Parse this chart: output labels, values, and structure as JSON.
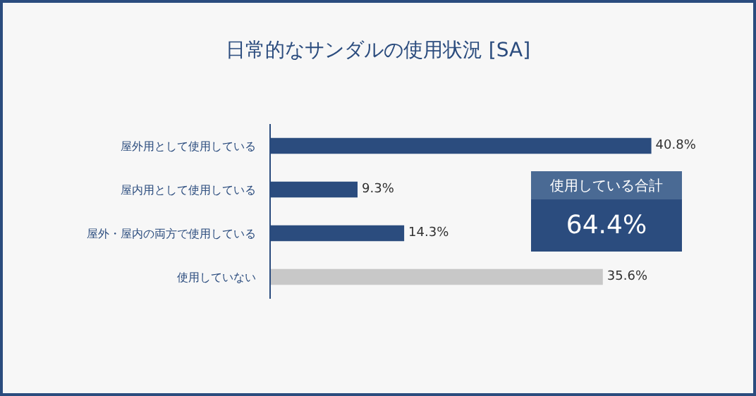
{
  "chart_data": {
    "type": "bar",
    "orientation": "horizontal",
    "title": "日常的なサンダルの使用状況 [SA]",
    "categories": [
      "屋外用として使用している",
      "屋内用として使用している",
      "屋外・屋内の両方で使用している",
      "使用していない"
    ],
    "values": [
      40.8,
      9.3,
      14.3,
      35.6
    ],
    "colors": [
      "#2b4c7e",
      "#2b4c7e",
      "#2b4c7e",
      "#c8c8c8"
    ],
    "value_labels": [
      "40.8%",
      "9.3%",
      "14.3%",
      "35.6%"
    ],
    "tick_labels": "y",
    "annotations": [
      "使用している合計",
      "64.4%"
    ]
  }
}
